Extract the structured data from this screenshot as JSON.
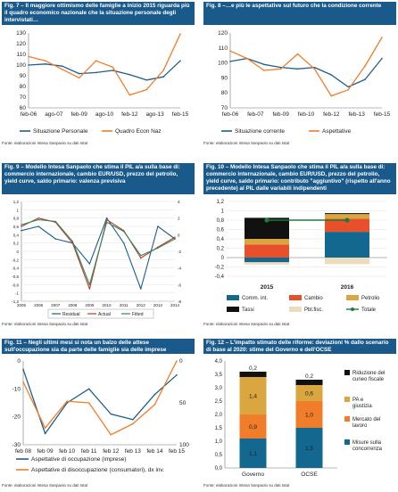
{
  "colors": {
    "title_bg": "#1a5a8a",
    "blue": "#1f5f8b",
    "orange": "#f07d2a",
    "teal": "#12688f",
    "red_orange": "#e8502b",
    "gold": "#d9a640",
    "black": "#111111",
    "beige": "#eddcbc",
    "green": "#1d7a3a"
  },
  "panels": {
    "fig7": {
      "title": "Fig. 7 – Il maggiore ottimismo delle famiglie a inizio 2015 riguarda più il quadro economico nazionale che la situazione personale degli intervistati…",
      "source": "Fonte: elaborazioni Intesa Sanpaolo su dati Istat",
      "chart_data": {
        "type": "line",
        "x": [
          "feb-06",
          "feb-07",
          "feb-08",
          "feb-09",
          "feb-10",
          "feb-11",
          "feb-12",
          "feb-13",
          "feb-14",
          "feb-15"
        ],
        "x_tick_labels": [
          "feb-06",
          "ago-07",
          "feb-09",
          "ago-10",
          "feb-12",
          "ago-13",
          "feb-15"
        ],
        "ylim": [
          60,
          130
        ],
        "y_ticks": [
          60,
          70,
          80,
          90,
          100,
          110,
          120,
          130
        ],
        "series": [
          {
            "name": "Situazione Personale",
            "color": "#1f5f8b",
            "values": [
              100,
              101,
              99,
              92,
              93,
              95,
              91,
              86,
              89,
              104
            ]
          },
          {
            "name": "Quadro Econ Naz",
            "color": "#f07d2a",
            "values": [
              108,
              104,
              96,
              88,
              104,
              98,
              72,
              77,
              95,
              129
            ]
          }
        ]
      }
    },
    "fig8": {
      "title": "Fig. 8 –…e più le aspettative sul futuro che la condizione corrente",
      "source": "Fonte: elaborazioni Intesa Sanpaolo su dati Istat",
      "chart_data": {
        "type": "line",
        "x": [
          "feb-06",
          "feb-07",
          "feb-08",
          "feb-09",
          "feb-10",
          "feb-11",
          "feb-12",
          "feb-13",
          "feb-14",
          "feb-15"
        ],
        "x_tick_labels": [
          "feb-06",
          "feb-07",
          "feb-09",
          "feb-10",
          "feb-12",
          "feb-13",
          "feb-15"
        ],
        "ylim": [
          70,
          120
        ],
        "y_ticks": [
          70,
          80,
          90,
          100,
          110,
          120
        ],
        "series": [
          {
            "name": "Situazione corrente",
            "color": "#1f5f8b",
            "values": [
              101,
              103,
              99,
              97,
              96,
              97,
              92,
              84,
              89,
              103
            ]
          },
          {
            "name": "Aspettative",
            "color": "#f07d2a",
            "values": [
              108,
              103,
              95,
              96,
              106,
              96,
              78,
              82,
              98,
              117
            ]
          }
        ]
      }
    },
    "fig9": {
      "title": "Fig. 9 – Modello Intesa Sanpaolo che stima il PIL a/a sulla base di: commercio internazionale, cambio EUR/USD, prezzo del petrolio, yield curve, saldo primario: valenza previsiva",
      "source": "Fonte: elaborazioni Intesa Sanpaolo su dati Istat",
      "chart_data": {
        "type": "line",
        "x": [
          "2005",
          "2006",
          "2007",
          "2008",
          "2009",
          "2010",
          "2011",
          "2012",
          "2013",
          "2014"
        ],
        "ylim": [
          -1.2,
          1.2
        ],
        "y_ticks": [
          -1.2,
          -1.0,
          -0.8,
          -0.6,
          -0.4,
          -0.2,
          0,
          0.2,
          0.4,
          0.6,
          0.8,
          1.0,
          1.2
        ],
        "y2lim": [
          -8,
          4
        ],
        "y2_ticks": [
          -8,
          -6,
          -4,
          -2,
          0,
          2,
          4
        ],
        "series": [
          {
            "name": "Residual",
            "axis": "left",
            "color": "#1f5f8b",
            "values": [
              0.5,
              0.6,
              0.3,
              0.2,
              -0.3,
              0.8,
              0.2,
              -0.9,
              0.6,
              0.3
            ]
          },
          {
            "name": "Actual",
            "axis": "right",
            "color": "#c0392b",
            "values": [
              1.0,
              2.0,
              1.5,
              -1.0,
              -6.5,
              1.8,
              0.5,
              -2.8,
              -1.5,
              -0.3
            ]
          },
          {
            "name": "Fitted",
            "axis": "right",
            "color": "#2e8b57",
            "values": [
              1.2,
              1.8,
              1.6,
              -0.8,
              -6.0,
              1.5,
              0.4,
              -2.5,
              -1.6,
              -0.5
            ]
          }
        ]
      }
    },
    "fig10": {
      "title": "Fig. 10 – Modello Intesa Sanpaolo che stima il PIL a/a sulla base di: commercio internazionale, cambio EUR/USD, prezzo del petrolio, yield curve, saldo primario: contributo \"aggiuntivo\" (rispetto all'anno precedente) al PIL dalle variabili indipendenti",
      "source": "Fonte: elaborazioni Intesa Sanpaolo su dati Istat",
      "chart_data": {
        "type": "bar",
        "stacked": true,
        "categories": [
          "2015",
          "2016"
        ],
        "ylim": [
          -0.4,
          1.2
        ],
        "y_ticks": [
          -0.4,
          -0.2,
          0,
          0.2,
          0.4,
          0.6,
          0.8,
          1.0,
          1.2
        ],
        "series": [
          {
            "name": "Comm. int.",
            "color": "#12688f",
            "values": [
              -0.1,
              0.55
            ]
          },
          {
            "name": "Cambio",
            "color": "#e8502b",
            "values": [
              0.28,
              0.28
            ]
          },
          {
            "name": "Petrolio",
            "color": "#d9a640",
            "values": [
              0.12,
              0.1
            ]
          },
          {
            "name": "Tassi",
            "color": "#111111",
            "values": [
              0.45,
              0.02
            ]
          },
          {
            "name": "Pbl.fisc.",
            "color": "#eddcbc",
            "values": [
              -0.05,
              -0.14
            ]
          },
          {
            "name": "Totale",
            "type": "line",
            "color": "#1d7a3a",
            "values": [
              0.8,
              0.8
            ]
          }
        ]
      }
    },
    "fig11": {
      "title": "Fig. 11 – Negli ultimi mesi si nota un balzo delle attese sull'occupazione sia da parte delle famiglie sia delle imprese",
      "source": "Fonte: elaborazioni Intesa Sanpaolo su dati Istat",
      "chart_data": {
        "type": "line",
        "x": [
          "feb 08",
          "feb 09",
          "feb 10",
          "feb 11",
          "feb 12",
          "feb 13",
          "feb 14",
          "feb 15"
        ],
        "ylim": [
          -30,
          0
        ],
        "y_ticks": [
          -30,
          -20,
          -10,
          0
        ],
        "y2lim": [
          100,
          0
        ],
        "y2_ticks": [
          0,
          50,
          100
        ],
        "series": [
          {
            "name": "Aspettative di occupazione (imprese)",
            "axis": "left",
            "color": "#1f5f8b",
            "values": [
              -3,
              -26,
              -15,
              -10,
              -19,
              -21,
              -12,
              -5
            ]
          },
          {
            "name": "Aspettative di disoccupazione (consumatori), dx inv.",
            "axis": "right",
            "color": "#f07d2a",
            "values": [
              25,
              80,
              48,
              50,
              88,
              75,
              52,
              0
            ]
          }
        ]
      }
    },
    "fig12": {
      "title": "Fig. 12 – L'impatto stimato delle riforme: deviazioni % dallo scenario di base al 2020: stime del Governo e dell'OCSE",
      "source": "Fonte: elaborazioni Intesa Sanpaolo su dati Istat",
      "chart_data": {
        "type": "bar",
        "stacked": true,
        "categories": [
          "Governo",
          "OCSE"
        ],
        "ylim": [
          0,
          4.0
        ],
        "y_ticks": [
          "0,0",
          "0,5",
          "1,0",
          "1,5",
          "2,0",
          "2,5",
          "3,0",
          "3,5",
          "4,0"
        ],
        "series": [
          {
            "name": "Misure sulla concorrenza",
            "color": "#12688f",
            "values": [
              1.1,
              1.5
            ],
            "labels": [
              "1,1",
              "1,5"
            ]
          },
          {
            "name": "Mercato del lavoro",
            "color": "#f07d2a",
            "values": [
              0.9,
              1.0
            ],
            "labels": [
              "0,9",
              "1,0"
            ]
          },
          {
            "name": "PA e giustizia",
            "color": "#d9a640",
            "values": [
              1.4,
              0.6
            ],
            "labels": [
              "1,4",
              "0,6"
            ]
          },
          {
            "name": "Riduzione del cuneo fiscale",
            "color": "#111111",
            "values": [
              0.2,
              0.2
            ],
            "labels": [
              "0,2",
              "0,2"
            ]
          }
        ]
      }
    }
  }
}
